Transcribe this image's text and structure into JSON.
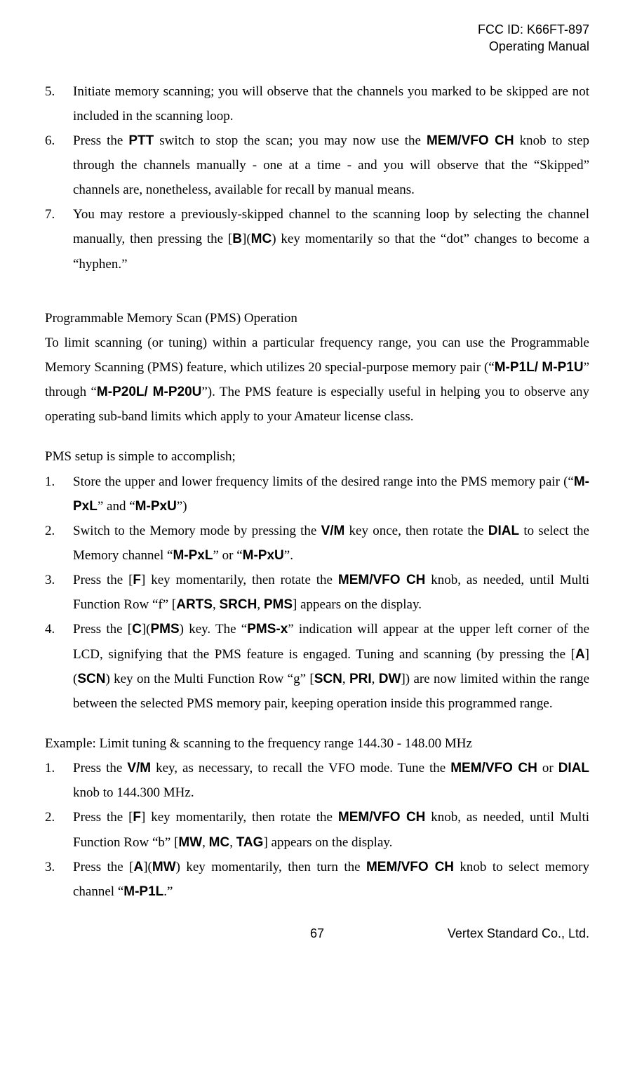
{
  "header": {
    "line1": "FCC ID: K66FT-897",
    "line2": "Operating Manual"
  },
  "list1": {
    "i5": {
      "num": "5.",
      "text": "Initiate memory scanning; you will observe that the channels you marked to be skipped are not included in the scanning loop."
    },
    "i6": {
      "num": "6.",
      "t1": "Press the ",
      "b1": "PTT",
      "t2": " switch to stop the scan; you may now use the ",
      "b2": "MEM/VFO CH",
      "t3": " knob to step through the channels manually - one at a time - and you will observe that the “Skipped” channels are, nonetheless, available for recall by manual means."
    },
    "i7": {
      "num": "7.",
      "t1": "You may restore a previously-skipped channel to the scanning loop by selecting the channel manually, then pressing the [",
      "b1": "B",
      "t2": "](",
      "b2": "MC",
      "t3": ") key momentarily so that the “dot” changes to become a “hyphen.”"
    }
  },
  "pms": {
    "title": "Programmable Memory Scan (PMS) Operation",
    "p1a": "To limit scanning (or tuning) within a particular frequency range, you can use the Programmable Memory Scanning (PMS) feature, which utilizes 20 special-purpose memory pair (“",
    "p1b1": "M-P1L/ M-P1U",
    "p1c": "” through “",
    "p1b2": "M-P20L/ M-P20U",
    "p1d": "”). The PMS feature is especially useful in helping you to observe any operating sub-band limits which apply to your Amateur license class.",
    "setup": "PMS setup is simple to accomplish;"
  },
  "list2": {
    "i1": {
      "num": "1.",
      "t1": "Store the upper and lower frequency limits of the desired range into the PMS memory pair (“",
      "b1": "M-PxL",
      "t2": "” and “",
      "b2": "M-PxU",
      "t3": "”)"
    },
    "i2": {
      "num": "2.",
      "t1": "Switch to the Memory mode by pressing the ",
      "b1": "V/M",
      "t2": " key once, then rotate the ",
      "b2": "DIAL",
      "t3": " to select the Memory channel “",
      "b3": "M-PxL",
      "t4": "” or “",
      "b4": "M-PxU",
      "t5": "”."
    },
    "i3": {
      "num": "3.",
      "t1": "Press the [",
      "b1": "F",
      "t2": "] key momentarily, then rotate the ",
      "b2": "MEM/VFO CH",
      "t3": " knob, as needed, until Multi Function Row “f” [",
      "b3": "ARTS",
      "c1": ", ",
      "b4": "SRCH",
      "c2": ", ",
      "b5": "PMS",
      "t4": "] appears on the display."
    },
    "i4": {
      "num": "4.",
      "t1": "Press the [",
      "b1": "C",
      "t2": "](",
      "b2": "PMS",
      "t3": ") key. The “",
      "b3": "PMS-x",
      "t4": "” indication will appear at the upper left corner of the LCD, signifying that the PMS feature is engaged. Tuning and scanning (by pressing the [",
      "b4": "A",
      "t5": "](",
      "b5": "SCN",
      "t6": ") key on the Multi Function Row “g” [",
      "b6": "SCN",
      "c1": ", ",
      "b7": "PRI",
      "c2": ", ",
      "b8": "DW",
      "t7": "]) are now limited within the range between the selected PMS memory pair, keeping operation inside this programmed range."
    }
  },
  "example": {
    "title": "Example: Limit tuning & scanning to the frequency range 144.30 - 148.00 MHz"
  },
  "list3": {
    "i1": {
      "num": "1.",
      "t1": "Press the ",
      "b1": "V/M",
      "t2": " key, as necessary, to recall the VFO mode. Tune the ",
      "b2": "MEM/VFO CH",
      "t3": " or ",
      "b3": "DIAL",
      "t4": " knob to 144.300 MHz."
    },
    "i2": {
      "num": "2.",
      "t1": "Press the [",
      "b1": "F",
      "t2": "] key momentarily, then rotate the ",
      "b2": "MEM/VFO CH",
      "t3": " knob, as needed, until Multi Function Row “b” [",
      "b3": "MW",
      "c1": ", ",
      "b4": "MC",
      "c2": ", ",
      "b5": "TAG",
      "t4": "] appears on the display."
    },
    "i3": {
      "num": "3.",
      "t1": "Press the [",
      "b1": "A",
      "t2": "](",
      "b2": "MW",
      "t3": ") key momentarily, then turn the ",
      "b3": "MEM/VFO CH",
      "t4": " knob to select memory channel “",
      "b4": "M-P1L",
      "t5": ".”"
    }
  },
  "footer": {
    "page": "67",
    "company": "Vertex Standard Co., Ltd."
  }
}
